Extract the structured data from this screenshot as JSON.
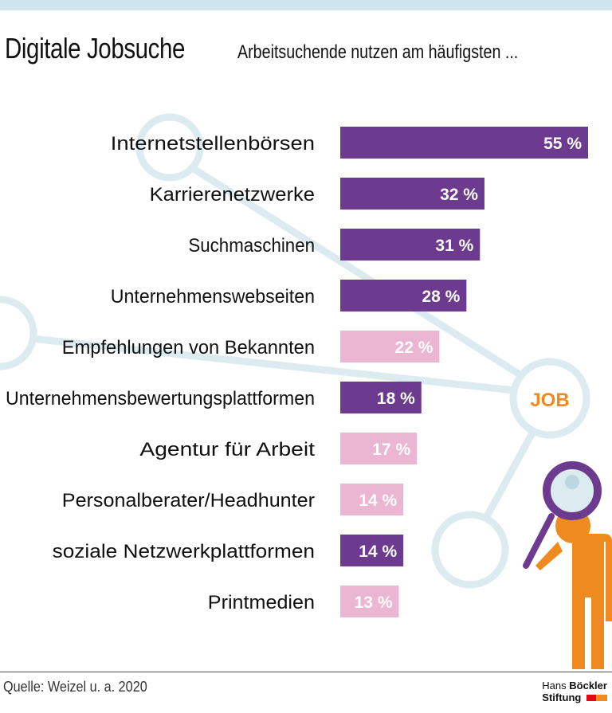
{
  "title": "Digitale Jobsuche",
  "subtitle": "Arbeitsuchende nutzen am häufigsten ...",
  "source": "Quelle: Weizel u. a. 2020",
  "logo": {
    "line1_a": "Hans",
    "line1_b": "Böckler",
    "line2": "Stiftung"
  },
  "illustration_text": "JOB",
  "colors": {
    "purple": "#6c3a8e",
    "pink": "#ebb6d2",
    "background_network": "#dcebef",
    "accent_orange": "#ee8a1e"
  },
  "chart_data": {
    "type": "bar",
    "orientation": "horizontal",
    "title": "Digitale Jobsuche",
    "subtitle": "Arbeitsuchende nutzen am häufigsten ...",
    "unit": "%",
    "categories": [
      "Internetstellenbörsen",
      "Karrierenetzwerke",
      "Suchmaschinen",
      "Unternehmenswebseiten",
      "Empfehlungen von Bekannten",
      "Unternehmensbewertungsplattformen",
      "Agentur für Arbeit",
      "Personalberater/Headhunter",
      "soziale Netzwerkplattformen",
      "Printmedien"
    ],
    "values": [
      55,
      32,
      31,
      28,
      22,
      18,
      17,
      14,
      14,
      13
    ],
    "labels": [
      "55 %",
      "32 %",
      "31 %",
      "28 %",
      "22 %",
      "18 %",
      "17 %",
      "14 %",
      "14 %",
      "13 %"
    ],
    "bar_colors": [
      "purple",
      "purple",
      "purple",
      "purple",
      "pink",
      "purple",
      "pink",
      "pink",
      "purple",
      "pink"
    ],
    "grid": false
  }
}
